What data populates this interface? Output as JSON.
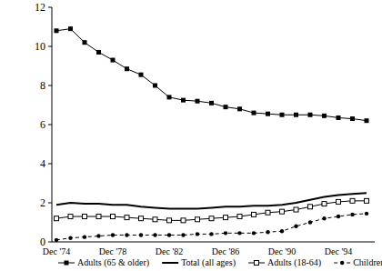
{
  "chart_data": {
    "type": "line",
    "categories": [
      "Dec '74",
      null,
      null,
      null,
      "Dec '78",
      null,
      null,
      null,
      "Dec '82",
      null,
      null,
      null,
      "Dec '86",
      null,
      null,
      null,
      "Dec '90",
      null,
      null,
      null,
      "Dec '94",
      null,
      null
    ],
    "ylim": [
      0,
      12
    ],
    "yticks": [
      0,
      2,
      4,
      6,
      8,
      10,
      12
    ],
    "grid": false,
    "legend": "bottom",
    "series": [
      {
        "name": "Adults (65 & older)",
        "color": "#000000",
        "marker": "square",
        "line_style": "solid",
        "values": [
          10.8,
          10.9,
          10.2,
          9.7,
          9.3,
          8.85,
          8.55,
          8.0,
          7.4,
          7.25,
          7.2,
          7.1,
          6.9,
          6.8,
          6.6,
          6.55,
          6.5,
          6.5,
          6.5,
          6.45,
          6.35,
          6.3,
          6.2
        ]
      },
      {
        "name": "Total (all ages)",
        "color": "#000000",
        "marker": "none",
        "line_style": "solid",
        "values": [
          1.9,
          2.0,
          1.95,
          1.95,
          1.9,
          1.9,
          1.8,
          1.75,
          1.7,
          1.7,
          1.7,
          1.75,
          1.8,
          1.8,
          1.85,
          1.85,
          1.9,
          2.0,
          2.15,
          2.3,
          2.4,
          2.45,
          2.5
        ]
      },
      {
        "name": "Adults (18-64)",
        "color": "#000000",
        "marker": "square_open",
        "line_style": "solid",
        "values": [
          1.2,
          1.3,
          1.3,
          1.3,
          1.3,
          1.25,
          1.2,
          1.15,
          1.1,
          1.1,
          1.15,
          1.2,
          1.25,
          1.3,
          1.4,
          1.5,
          1.55,
          1.65,
          1.8,
          1.95,
          2.05,
          2.1,
          2.1
        ]
      },
      {
        "name": "Children",
        "color": "#000000",
        "marker": "circle",
        "line_style": "dashed",
        "values": [
          0.1,
          0.2,
          0.25,
          0.3,
          0.35,
          0.35,
          0.35,
          0.35,
          0.35,
          0.35,
          0.4,
          0.4,
          0.45,
          0.45,
          0.45,
          0.5,
          0.55,
          0.8,
          1.0,
          1.2,
          1.3,
          1.4,
          1.45
        ]
      }
    ]
  }
}
